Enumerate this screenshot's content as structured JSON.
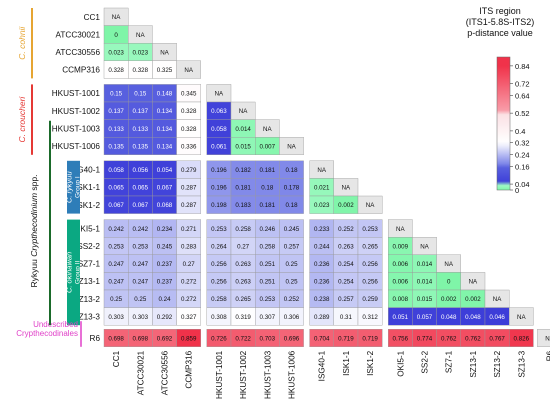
{
  "chart_data": {
    "type": "heatmap",
    "labels": [
      "CC1",
      "ATCC30021",
      "ATCC30556",
      "CCMP316",
      "HKUST-1001",
      "HKUST-1002",
      "HKUST-1003",
      "HKUST-1006",
      "ISG40-1",
      "ISK1-1",
      "ISK1-2",
      "OKI5-1",
      "SS2-2",
      "SZ7-1",
      "SZ13-1",
      "SZ13-2",
      "SZ13-3",
      "R6"
    ],
    "values": [
      [],
      [
        0
      ],
      [
        0.023,
        0.023
      ],
      [
        0.328,
        0.328,
        0.325
      ],
      [
        0.15,
        0.15,
        0.148,
        0.345
      ],
      [
        0.137,
        0.137,
        0.134,
        0.328,
        0.063
      ],
      [
        0.133,
        0.133,
        0.134,
        0.328,
        0.058,
        0.014
      ],
      [
        0.135,
        0.135,
        0.134,
        0.336,
        0.061,
        0.015,
        0.007
      ],
      [
        0.058,
        0.056,
        0.054,
        0.279,
        0.196,
        0.182,
        0.181,
        0.18
      ],
      [
        0.065,
        0.065,
        0.067,
        0.287,
        0.196,
        0.181,
        0.18,
        0.178,
        0.021
      ],
      [
        0.067,
        0.067,
        0.068,
        0.287,
        0.198,
        0.183,
        0.181,
        0.18,
        0.023,
        0.002
      ],
      [
        0.242,
        0.242,
        0.234,
        0.271,
        0.253,
        0.258,
        0.246,
        0.245,
        0.233,
        0.252,
        0.253
      ],
      [
        0.253,
        0.253,
        0.245,
        0.283,
        0.264,
        0.27,
        0.258,
        0.257,
        0.244,
        0.263,
        0.265,
        0.009
      ],
      [
        0.247,
        0.247,
        0.237,
        0.27,
        0.256,
        0.263,
        0.251,
        0.25,
        0.236,
        0.254,
        0.256,
        0.006,
        0.014
      ],
      [
        0.247,
        0.247,
        0.237,
        0.272,
        0.256,
        0.263,
        0.251,
        0.25,
        0.236,
        0.254,
        0.256,
        0.006,
        0.014,
        0
      ],
      [
        0.25,
        0.25,
        0.24,
        0.272,
        0.258,
        0.265,
        0.253,
        0.252,
        0.238,
        0.257,
        0.259,
        0.008,
        0.015,
        0.002,
        0.002
      ],
      [
        0.303,
        0.303,
        0.292,
        0.327,
        0.308,
        0.319,
        0.307,
        0.306,
        0.289,
        0.31,
        0.312,
        0.051,
        0.057,
        0.048,
        0.048,
        0.046
      ],
      [
        0.698,
        0.698,
        0.692,
        0.859,
        0.726,
        0.722,
        0.703,
        0.696,
        0.704,
        0.719,
        0.719,
        0.756,
        0.774,
        0.762,
        0.762,
        0.767,
        0.826
      ]
    ],
    "diagonal_text": "NA",
    "groups": [
      {
        "name": "C. cohnii",
        "start": 0,
        "end": 3,
        "color": "#e6a532"
      },
      {
        "name": "C. croucheri",
        "start": 4,
        "end": 7,
        "color": "#e53935"
      },
      {
        "name": "C. rykyuu",
        "subtitle": "Group I",
        "start": 8,
        "end": 10,
        "color": "#2e7db8"
      },
      {
        "name": "C. okinawan",
        "subtitle": "Group II",
        "start": 11,
        "end": 16,
        "color": "#0ba882"
      },
      {
        "name": "Undescribed Crypthecodinales",
        "start": 17,
        "end": 17,
        "color": "#e040c8"
      }
    ],
    "outer_label": "Rykyuu Crypthecodinium spp.",
    "outer_label_color": "#1a6a2a",
    "legend": {
      "title": [
        "ITS region",
        "(ITS1-5.8S-ITS2)",
        "p-distance value"
      ],
      "ticks": [
        0.84,
        0.72,
        0.64,
        0.52,
        0.4,
        0.32,
        0.24,
        0.16,
        0.04,
        0
      ],
      "range": [
        0,
        0.9
      ],
      "colors": {
        "low": "#7ff5a8",
        "mid_low": "#3333d4",
        "mid": "#ffffff",
        "high": "#f0324a"
      }
    }
  }
}
